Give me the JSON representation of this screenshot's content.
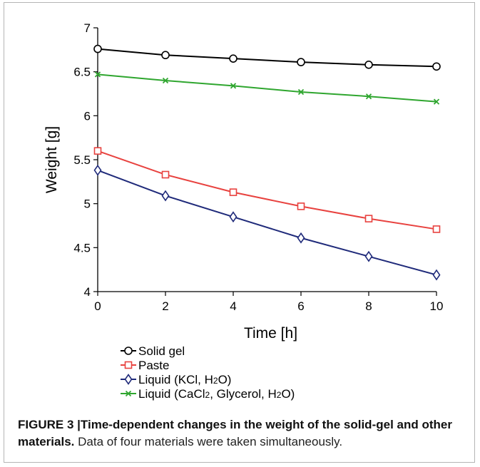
{
  "chart_data": {
    "type": "line",
    "title": "",
    "xlabel": "Time [h]",
    "ylabel": "Weight [g]",
    "xlim": [
      0,
      10
    ],
    "ylim": [
      4,
      7
    ],
    "xticks": [
      "0",
      "2",
      "4",
      "6",
      "8",
      "10"
    ],
    "yticks": [
      "4",
      "4.5",
      "5",
      "5.5",
      "6",
      "6.5",
      "7"
    ],
    "grid": false,
    "legend_position": "below plot, left",
    "x": [
      0,
      2,
      4,
      6,
      8,
      10
    ],
    "series": [
      {
        "name": "Solid gel",
        "color": "#000000",
        "marker": "circle",
        "values": [
          6.76,
          6.69,
          6.65,
          6.61,
          6.58,
          6.56
        ]
      },
      {
        "name": "Paste",
        "color": "#e8423f",
        "marker": "square",
        "values": [
          5.6,
          5.33,
          5.13,
          4.97,
          4.83,
          4.71
        ]
      },
      {
        "name": "Liquid (KCl, H2O)",
        "color": "#1f2a7a",
        "marker": "diamond",
        "values": [
          5.38,
          5.09,
          4.85,
          4.61,
          4.4,
          4.19
        ]
      },
      {
        "name": "Liquid (CaCl2, Glycerol, H2O)",
        "color": "#2fa62f",
        "marker": "x",
        "values": [
          6.47,
          6.4,
          6.34,
          6.27,
          6.22,
          6.16
        ]
      }
    ]
  },
  "legend": {
    "items": [
      {
        "label": "Solid gel"
      },
      {
        "label": "Paste"
      },
      {
        "label_parts": [
          "Liquid (KCl, H",
          "2",
          "O)"
        ]
      },
      {
        "label_parts": [
          "Liquid (CaCl",
          "2",
          ", Glycerol, H",
          "2",
          "O)"
        ]
      }
    ]
  },
  "caption": {
    "figure_label": "FIGURE 3",
    "separator": "|",
    "title": "Time-dependent changes in the weight of the solid-gel and other materials.",
    "text": "Data of four materials were taken simultaneously."
  }
}
